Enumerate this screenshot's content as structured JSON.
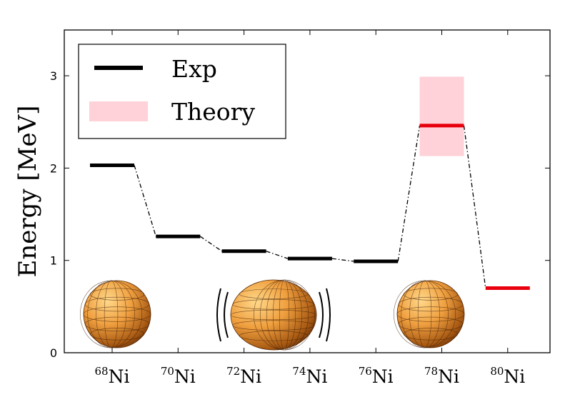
{
  "chart_data": {
    "type": "line",
    "ylabel": "Energy [MeV]",
    "xlabel": "",
    "ylim": [
      0,
      3.5
    ],
    "yticks": [
      "0",
      "1",
      "2",
      "3"
    ],
    "grid": false,
    "legend_position": "top-left",
    "categories": [
      {
        "mass": "68",
        "element": "Ni"
      },
      {
        "mass": "70",
        "element": "Ni"
      },
      {
        "mass": "72",
        "element": "Ni"
      },
      {
        "mass": "74",
        "element": "Ni"
      },
      {
        "mass": "76",
        "element": "Ni"
      },
      {
        "mass": "78",
        "element": "Ni"
      },
      {
        "mass": "80",
        "element": "Ni"
      }
    ],
    "series": [
      {
        "name": "Exp",
        "color": "#000000",
        "points": [
          {
            "x": "68Ni",
            "y": 2.03
          },
          {
            "x": "70Ni",
            "y": 1.26
          },
          {
            "x": "72Ni",
            "y": 1.1
          },
          {
            "x": "74Ni",
            "y": 1.02
          },
          {
            "x": "76Ni",
            "y": 0.99
          }
        ]
      },
      {
        "name": "Theory",
        "color": "#e8000d",
        "band_color": "#ffd1d8",
        "points": [
          {
            "x": "78Ni",
            "y": 2.46,
            "band": [
              2.13,
              2.99
            ]
          },
          {
            "x": "80Ni",
            "y": 0.7
          }
        ]
      }
    ],
    "illustrations": [
      {
        "name": "spherical-nucleus-68",
        "shape": "sphere",
        "at": "68Ni"
      },
      {
        "name": "vibrating-deformed-nucleus",
        "shape": "deformed",
        "at": "73Ni"
      },
      {
        "name": "spherical-nucleus-78",
        "shape": "sphere",
        "at": "78Ni"
      }
    ]
  }
}
